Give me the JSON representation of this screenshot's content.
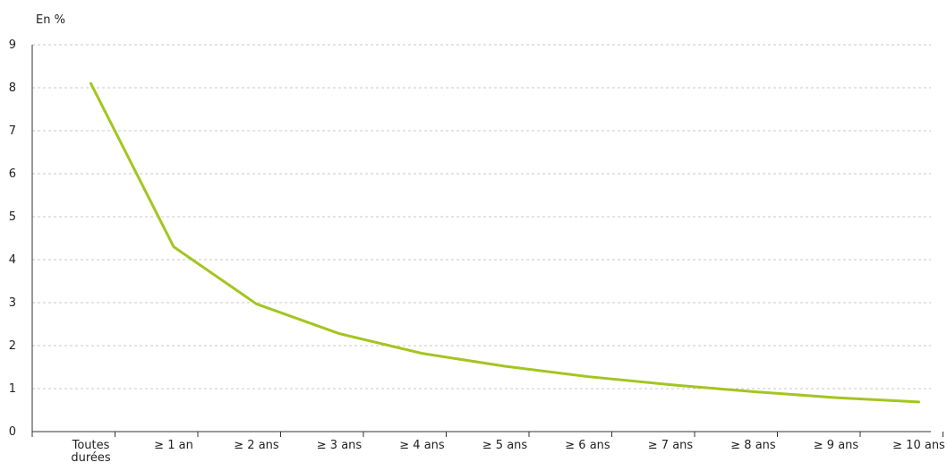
{
  "chart_data": {
    "type": "line",
    "title": "",
    "ylabel": "En %",
    "xlabel": "",
    "ylim": [
      0,
      9
    ],
    "yticks": [
      0,
      1,
      2,
      3,
      4,
      5,
      6,
      7,
      8,
      9
    ],
    "grid": true,
    "categories": [
      "Toutes durées",
      "≥ 1 an",
      "≥ 2 ans",
      "≥ 3 ans",
      "≥ 4 ans",
      "≥ 5 ans",
      "≥ 6 ans",
      "≥ 7 ans",
      "≥ 8 ans",
      "≥ 9 ans",
      "≥ 10 ans"
    ],
    "series": [
      {
        "values": [
          8.1,
          4.3,
          2.97,
          2.28,
          1.82,
          1.52,
          1.28,
          1.09,
          0.93,
          0.79,
          0.69
        ]
      }
    ],
    "line_color": "#a3c520",
    "grid_color": "#c8c8c8"
  }
}
